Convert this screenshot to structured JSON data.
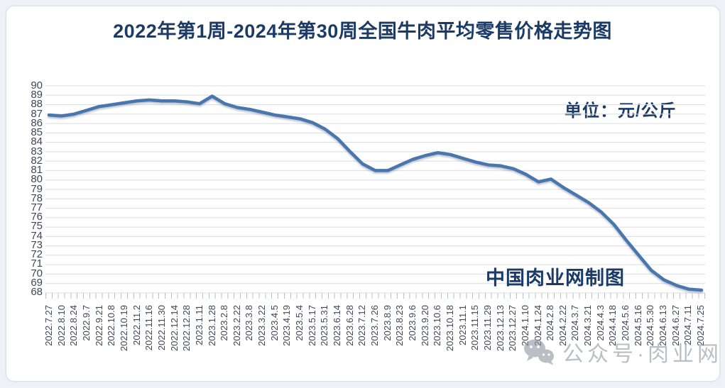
{
  "header": {
    "title": "2022年第1周-2024年第30周全国牛肉平均零售价格走势图"
  },
  "annotations": {
    "unit_label": "单位：元/公斤",
    "credit_label": "中国肉业网制图"
  },
  "watermark": {
    "icon": "wechat-icon",
    "text": "公众号·肉业网"
  },
  "colors": {
    "title_text": "#1b3a66",
    "line": "#4a76ad",
    "grid": "#d9dce1",
    "axis_text": "#3f4757",
    "watermark": "#8f98a3",
    "card_border": "#dce3ec",
    "page_bg": "#eef1f5"
  },
  "chart_data": {
    "type": "line",
    "title": "2022年第1周-2024年第30周全国牛肉平均零售价格走势图",
    "xlabel": "",
    "ylabel": "",
    "unit": "元/公斤",
    "ylim": [
      68,
      90
    ],
    "ytick_step": 1,
    "grid": true,
    "legend_position": "none",
    "categories": [
      "2022.7.27",
      "2022.8.10",
      "2022.8.24",
      "2022.9.7",
      "2022.9.21",
      "2022.10.8",
      "2022.10.19",
      "2022.11.2",
      "2022.11.16",
      "2022.11.30",
      "2022.12.14",
      "2022.12.28",
      "2023.1.11",
      "2023.1.28",
      "2023.2.8",
      "2023.2.22",
      "2023.3.8",
      "2023.3.22",
      "2023.4.5",
      "2023.4.19",
      "2023.5.4",
      "2023.5.17",
      "2023.5.31",
      "2023.6.14",
      "2023.6.28",
      "2023.7.12",
      "2023.7.26",
      "2023.8.9",
      "2023.8.23",
      "2023.9.6",
      "2023.9.20",
      "2023.10.6",
      "2023.10.18",
      "2023.11.1",
      "2023.11.15",
      "2023.11.29",
      "2023.12.13",
      "2023.12.27",
      "2024.1.10",
      "2024.1.24",
      "2024.2.8",
      "2024.2.22",
      "2024.3.7",
      "2024.3.21",
      "2024.4.3",
      "2024.4.18",
      "2024.5.6",
      "2024.5.16",
      "2024.5.30",
      "2024.6.13",
      "2024.6.27",
      "2024.7.11",
      "2024.7.25"
    ],
    "values": [
      86.9,
      86.8,
      87.0,
      87.4,
      87.8,
      88.0,
      88.2,
      88.4,
      88.5,
      88.4,
      88.4,
      88.3,
      88.1,
      88.9,
      88.1,
      87.7,
      87.5,
      87.2,
      86.9,
      86.7,
      86.5,
      86.1,
      85.4,
      84.4,
      83.0,
      81.7,
      81.0,
      81.0,
      81.6,
      82.2,
      82.6,
      82.9,
      82.7,
      82.3,
      81.9,
      81.6,
      81.5,
      81.2,
      80.6,
      79.8,
      80.1,
      79.2,
      78.4,
      77.6,
      76.6,
      75.3,
      73.6,
      72.0,
      70.4,
      69.4,
      68.8,
      68.4,
      68.3
    ]
  }
}
